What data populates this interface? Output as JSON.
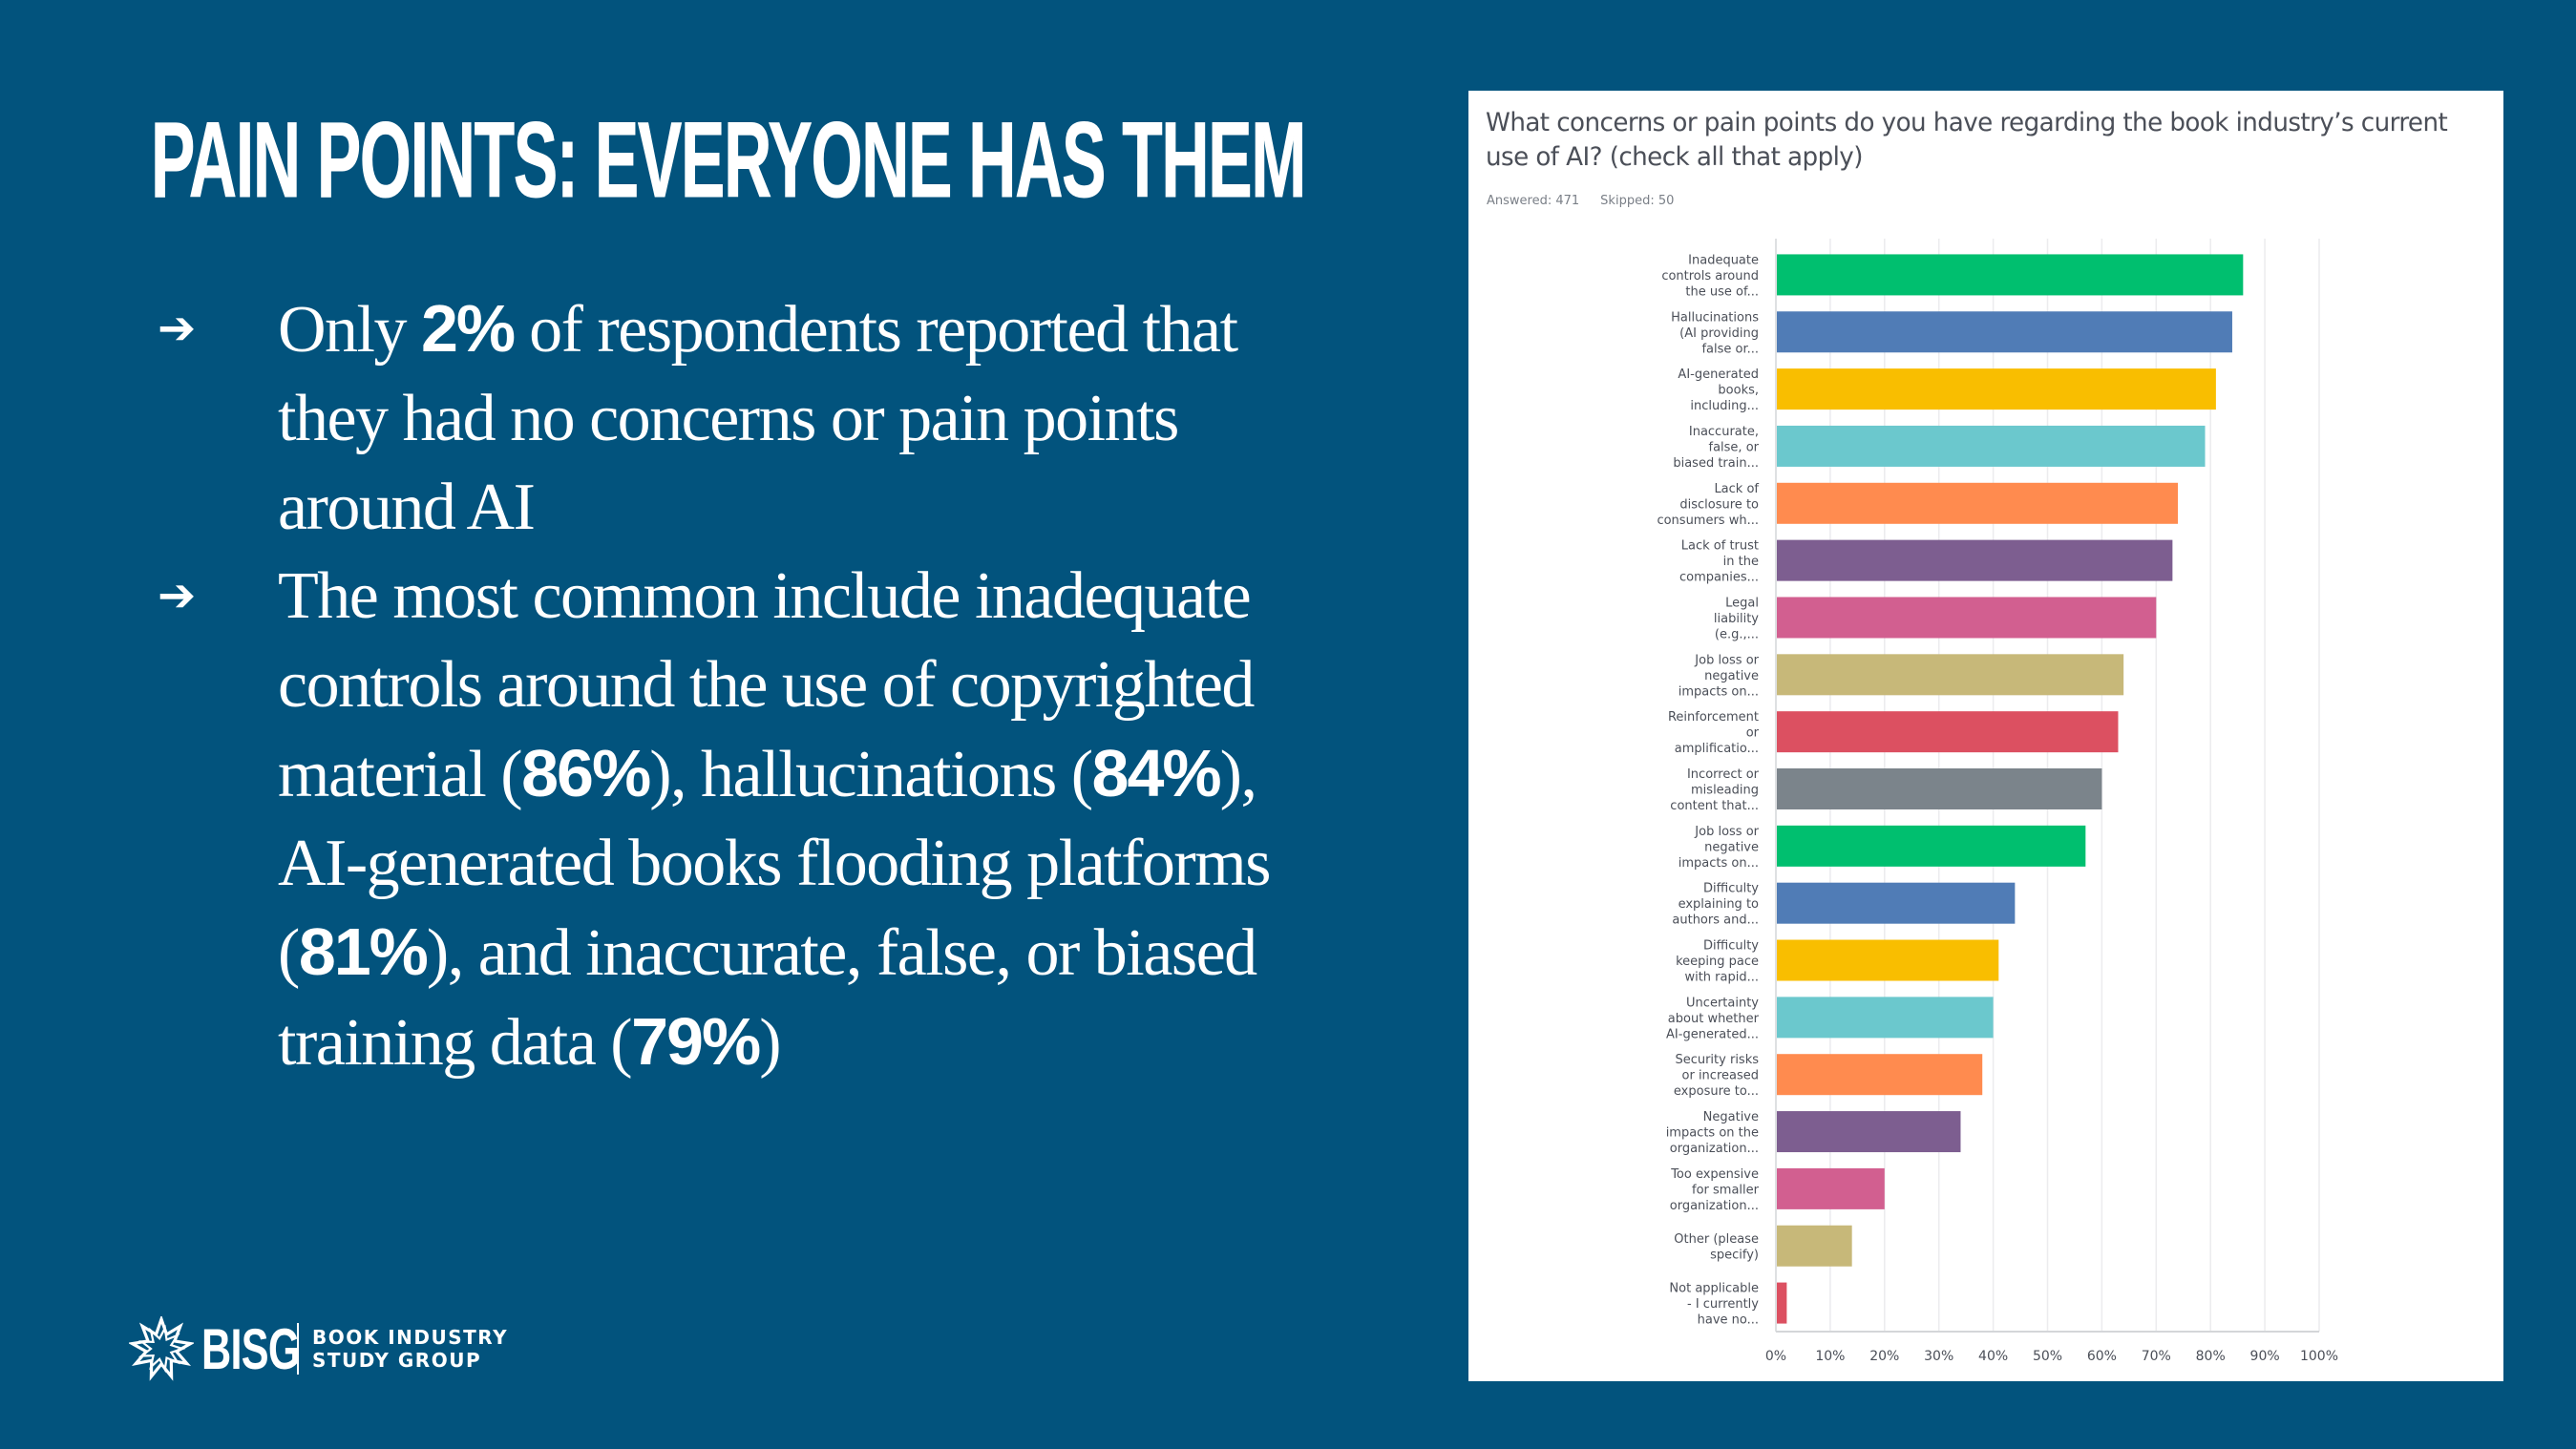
{
  "slide": {
    "title": "PAIN POINTS: EVERYONE HAS THEM",
    "bullets": [
      {
        "parts": [
          {
            "text": "Only ",
            "bold": false
          },
          {
            "text": "2%",
            "bold": true
          },
          {
            "text": " of respondents reported that they had no concerns or pain points around AI",
            "bold": false
          }
        ]
      },
      {
        "parts": [
          {
            "text": "The most common include inadequate controls around the use of copyrighted material (",
            "bold": false
          },
          {
            "text": "86%",
            "bold": true
          },
          {
            "text": "), hallucinations (",
            "bold": false
          },
          {
            "text": "84%",
            "bold": true
          },
          {
            "text": "), AI-generated books flooding platforms (",
            "bold": false
          },
          {
            "text": "81%",
            "bold": true
          },
          {
            "text": "), and inaccurate, false, or biased training data (",
            "bold": false
          },
          {
            "text": "79%",
            "bold": true
          },
          {
            "text": ")",
            "bold": false
          }
        ]
      }
    ],
    "bullet_icon": "right-arrow-icon",
    "bullet_glyph": "➔",
    "logo": {
      "mark": "BISG",
      "line1": "BOOK INDUSTRY",
      "line2": "STUDY GROUP"
    }
  },
  "survey": {
    "question": "What concerns or pain points do you have regarding the book industry’s current use of AI? (check all that apply)",
    "answered_label": "Answered: 471",
    "skipped_label": "Skipped: 50"
  },
  "chart_data": {
    "type": "bar",
    "orientation": "horizontal",
    "title": "What concerns or pain points do you have regarding the book industry’s current use of AI? (check all that apply)",
    "xlabel": "",
    "ylabel": "",
    "xlim": [
      0,
      100
    ],
    "x_unit": "%",
    "x_ticks": [
      "0%",
      "10%",
      "20%",
      "30%",
      "40%",
      "50%",
      "60%",
      "70%",
      "80%",
      "90%",
      "100%"
    ],
    "grid": true,
    "legend": "none",
    "categories": [
      [
        "Inadequate",
        "controls around",
        "the use of..."
      ],
      [
        "Hallucinations",
        "(AI providing",
        "false or..."
      ],
      [
        "AI-generated",
        "books,",
        "including..."
      ],
      [
        "Inaccurate,",
        "false, or",
        "biased train..."
      ],
      [
        "Lack of",
        "disclosure to",
        "consumers wh..."
      ],
      [
        "Lack of trust",
        "in the",
        "companies..."
      ],
      [
        "Legal",
        "liability",
        "(e.g.,..."
      ],
      [
        "Job loss or",
        "negative",
        "impacts on..."
      ],
      [
        "Reinforcement",
        "or",
        "amplificatio..."
      ],
      [
        "Incorrect or",
        "misleading",
        "content that..."
      ],
      [
        "Job loss or",
        "negative",
        "impacts on..."
      ],
      [
        "Difficulty",
        "explaining to",
        "authors and..."
      ],
      [
        "Difficulty",
        "keeping pace",
        "with rapid..."
      ],
      [
        "Uncertainty",
        "about whether",
        "AI-generated..."
      ],
      [
        "Security risks",
        "or increased",
        "exposure to..."
      ],
      [
        "Negative",
        "impacts on the",
        "organization..."
      ],
      [
        "Too expensive",
        "for smaller",
        "organization..."
      ],
      [
        "Other (please",
        "specify)"
      ],
      [
        "Not applicable",
        "- I currently",
        "have no..."
      ]
    ],
    "values": [
      86,
      84,
      81,
      79,
      74,
      73,
      70,
      64,
      63,
      60,
      57,
      44,
      41,
      40,
      38,
      34,
      20,
      14,
      2
    ],
    "colors": [
      "#00bf6f",
      "#507cb6",
      "#f9be00",
      "#6bc8cd",
      "#ff8b4f",
      "#7d5e90",
      "#d25f90",
      "#c7b879",
      "#dc5061",
      "#7b848b",
      "#00bf6f",
      "#507cb6",
      "#f9be00",
      "#6bc8cd",
      "#ff8b4f",
      "#7d5e90",
      "#d25f90",
      "#c7b879",
      "#dc5061"
    ]
  }
}
